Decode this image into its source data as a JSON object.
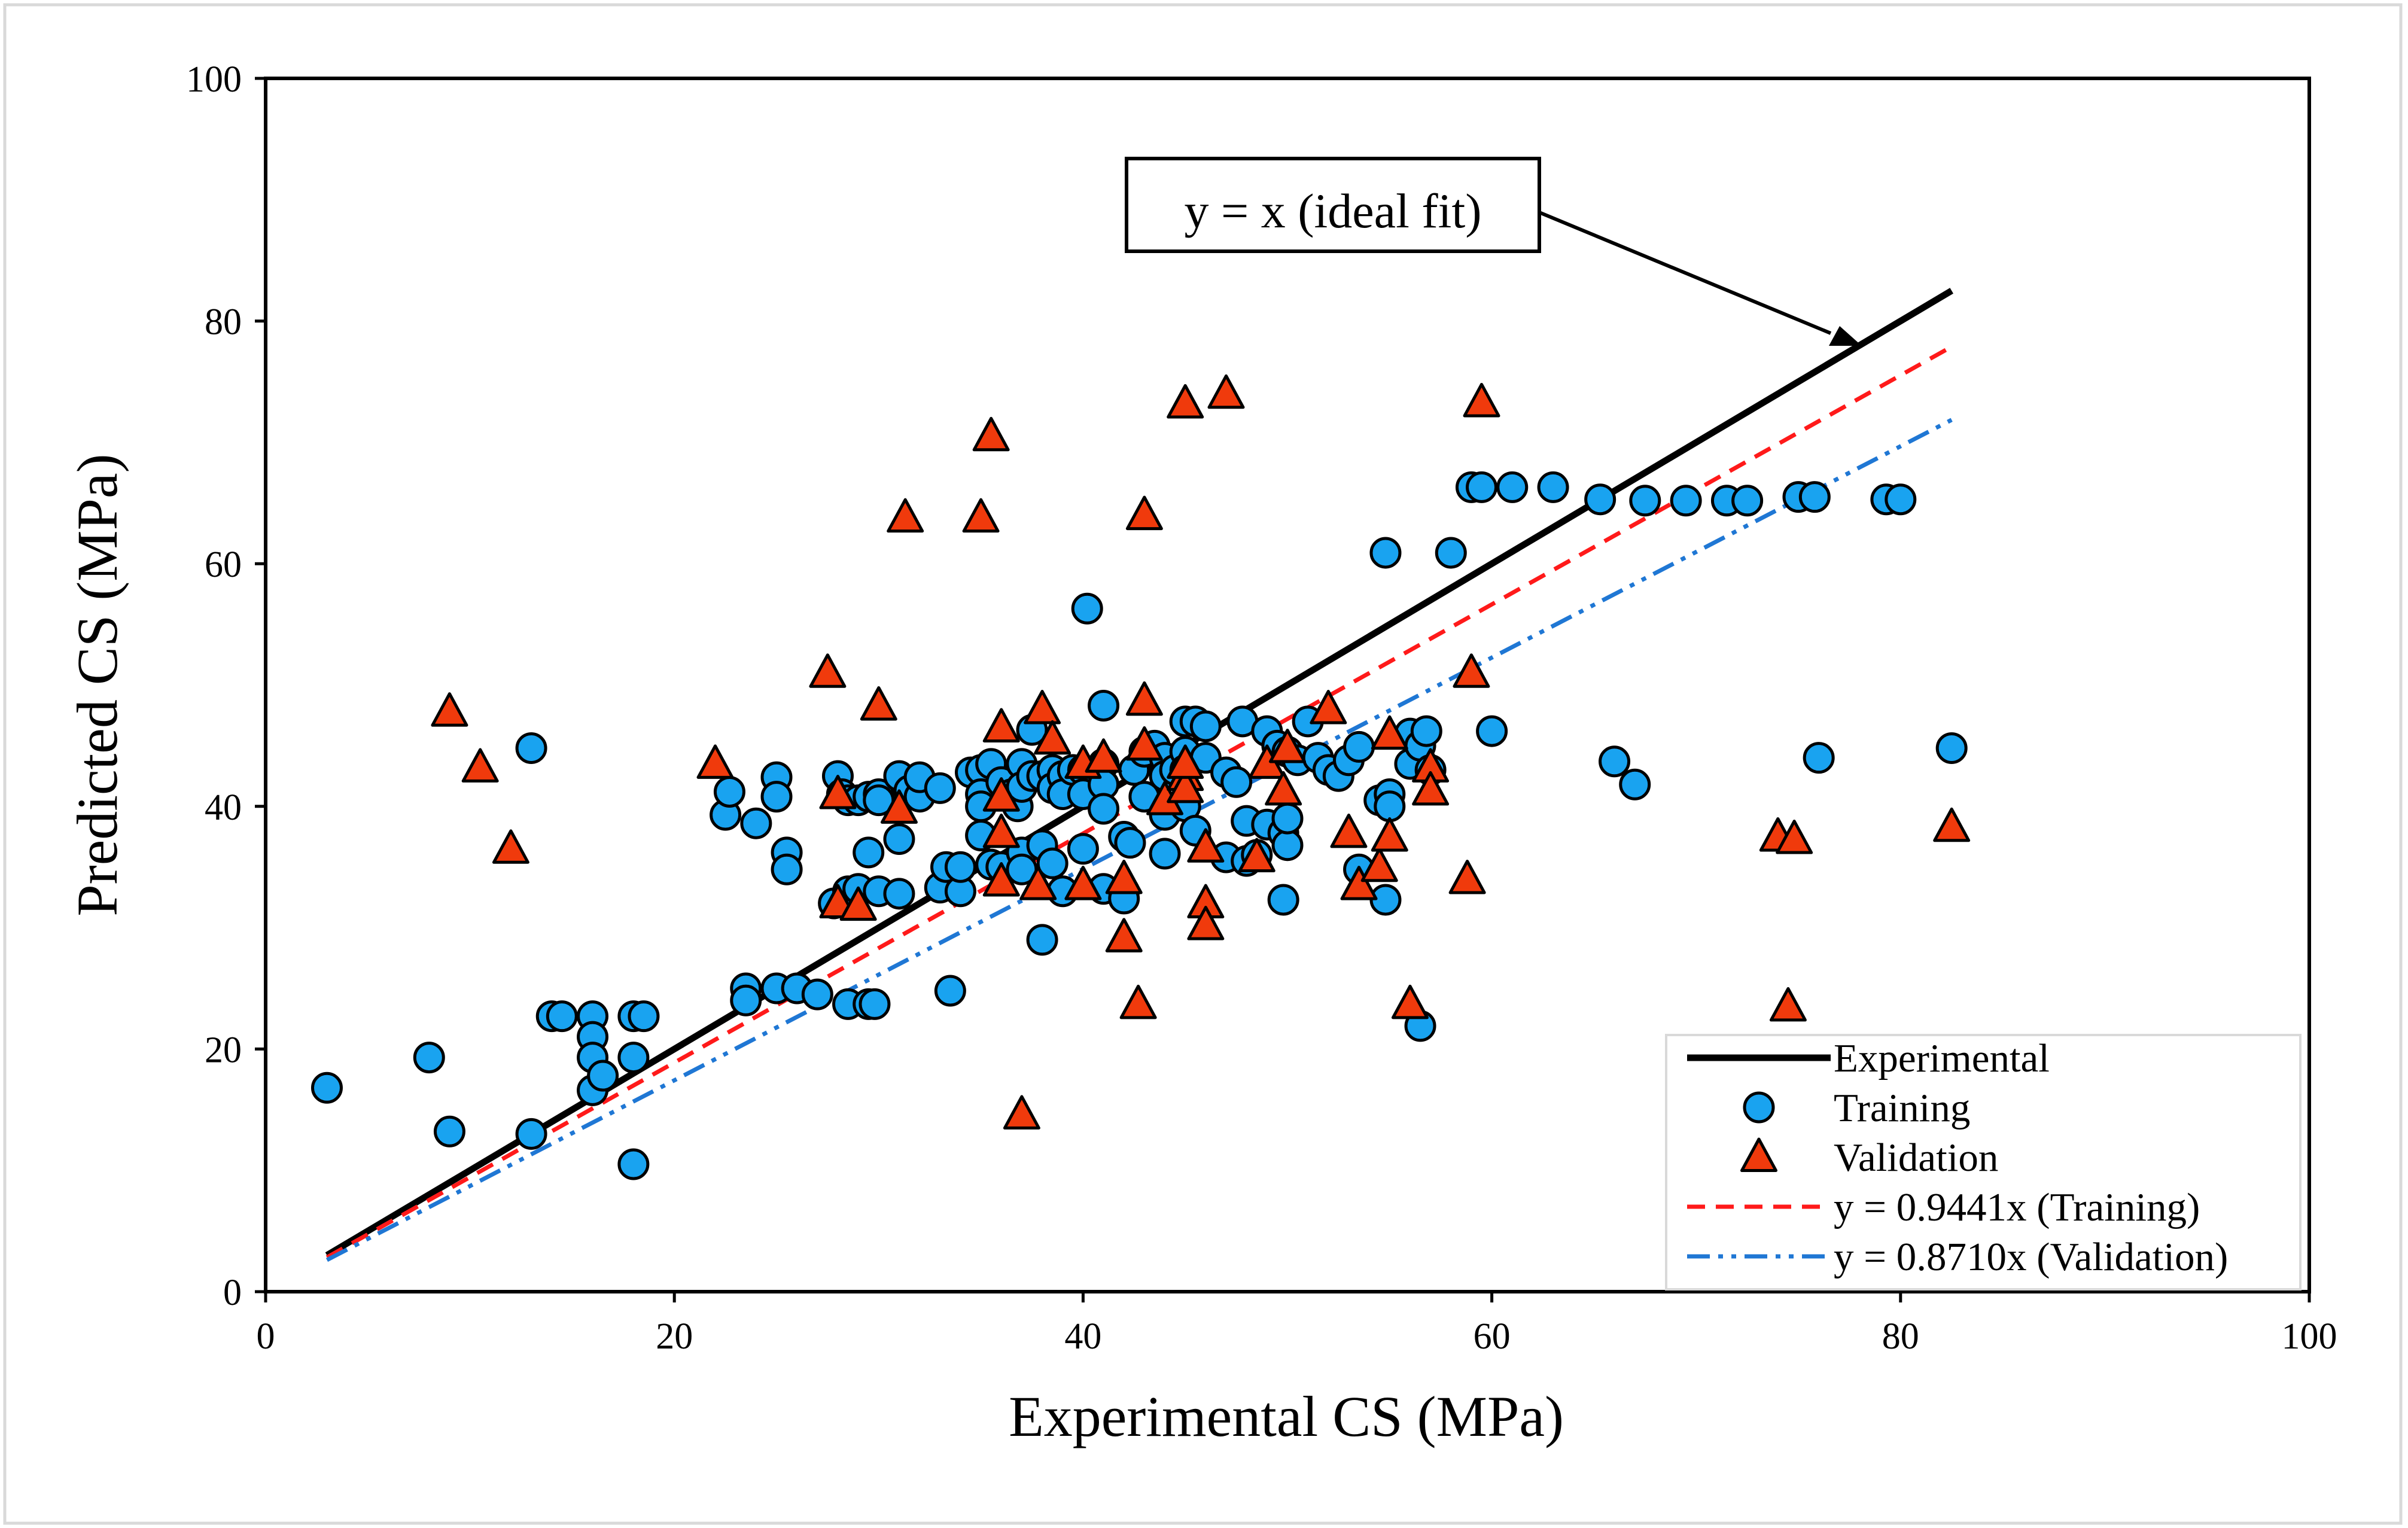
{
  "chart_data": {
    "type": "scatter",
    "xlabel": "Experimental CS (MPa)",
    "ylabel": "Predicted CS (MPa)",
    "xlim": [
      0,
      100
    ],
    "ylim": [
      0,
      100
    ],
    "xticks": [
      "0",
      "20",
      "40",
      "60",
      "80",
      "100"
    ],
    "yticks": [
      "0",
      "20",
      "40",
      "60",
      "80",
      "100"
    ],
    "grid": false,
    "legend_position": "bottom-right",
    "annotation": "y = x (ideal fit)",
    "lines": [
      {
        "name": "Experimental",
        "slope": 1.0,
        "x": [
          3,
          82.5
        ],
        "color": "#000000",
        "style": "solid"
      },
      {
        "name": "y = 0.9441x (Training)",
        "slope": 0.9441,
        "x": [
          3,
          82.5
        ],
        "color": "#ff1a1a",
        "style": "dashed"
      },
      {
        "name": "y = 0.8710x (Validation)",
        "slope": 0.871,
        "x": [
          3,
          82.5
        ],
        "color": "#1f77d4",
        "style": "dash-dot-dot"
      }
    ],
    "series": [
      {
        "name": "Training",
        "marker": "circle",
        "color": "#19a3f0",
        "points": [
          [
            3,
            16.8
          ],
          [
            8,
            19.3
          ],
          [
            9,
            13.2
          ],
          [
            13,
            13
          ],
          [
            13,
            44.8
          ],
          [
            14,
            22.7
          ],
          [
            14.5,
            22.7
          ],
          [
            16,
            22.7
          ],
          [
            16,
            21
          ],
          [
            16,
            19.3
          ],
          [
            16,
            16.6
          ],
          [
            16.5,
            17.8
          ],
          [
            18,
            19.3
          ],
          [
            18,
            22.7
          ],
          [
            18.5,
            22.7
          ],
          [
            18,
            10.5
          ],
          [
            22.5,
            39.3
          ],
          [
            22.7,
            41.2
          ],
          [
            24,
            38.6
          ],
          [
            25,
            42.4
          ],
          [
            25,
            40.8
          ],
          [
            25.5,
            36.2
          ],
          [
            25.5,
            34.8
          ],
          [
            23.5,
            25
          ],
          [
            23.5,
            24
          ],
          [
            25,
            25
          ],
          [
            26,
            25
          ],
          [
            27,
            24.5
          ],
          [
            28.5,
            23.7
          ],
          [
            29.5,
            23.7
          ],
          [
            29.8,
            23.7
          ],
          [
            27.8,
            32
          ],
          [
            28,
            42.5
          ],
          [
            28.2,
            41
          ],
          [
            28.5,
            40.5
          ],
          [
            29,
            40.5
          ],
          [
            29.5,
            40.8
          ],
          [
            30,
            41
          ],
          [
            30,
            40.5
          ],
          [
            31,
            42.5
          ],
          [
            31.5,
            41.3
          ],
          [
            32,
            40.8
          ],
          [
            32,
            42.4
          ],
          [
            33,
            41.5
          ],
          [
            28.5,
            33
          ],
          [
            29,
            33.2
          ],
          [
            29.5,
            36.2
          ],
          [
            30,
            33
          ],
          [
            31,
            37.3
          ],
          [
            31,
            32.8
          ],
          [
            33,
            33.3
          ],
          [
            33.3,
            35
          ],
          [
            34,
            33
          ],
          [
            34,
            35
          ],
          [
            33.5,
            24.8
          ],
          [
            34.5,
            42.8
          ],
          [
            35,
            43
          ],
          [
            35,
            41
          ],
          [
            35,
            40
          ],
          [
            35.5,
            43.5
          ],
          [
            36,
            42
          ],
          [
            35,
            37.6
          ],
          [
            35.5,
            35.2
          ],
          [
            36,
            35
          ],
          [
            36.5,
            41
          ],
          [
            36.8,
            40
          ],
          [
            37,
            43.5
          ],
          [
            37,
            41.6
          ],
          [
            37.5,
            46.3
          ],
          [
            37.5,
            42.5
          ],
          [
            37,
            36.2
          ],
          [
            37,
            34.8
          ],
          [
            38,
            42.5
          ],
          [
            38,
            36.8
          ],
          [
            38.5,
            43
          ],
          [
            38.5,
            41.5
          ],
          [
            38.5,
            35.3
          ],
          [
            39,
            42.5
          ],
          [
            39,
            41
          ],
          [
            39,
            33
          ],
          [
            39.5,
            43
          ],
          [
            40,
            43
          ],
          [
            40,
            41
          ],
          [
            40,
            36.5
          ],
          [
            40.2,
            56.3
          ],
          [
            41,
            48.3
          ],
          [
            41,
            43.5
          ],
          [
            41,
            41.8
          ],
          [
            41,
            39.8
          ],
          [
            41,
            33.2
          ],
          [
            38,
            29
          ],
          [
            42,
            37.5
          ],
          [
            42,
            33
          ],
          [
            42,
            32.4
          ],
          [
            42.3,
            37
          ],
          [
            42.5,
            43
          ],
          [
            43,
            44.5
          ],
          [
            43,
            40.8
          ],
          [
            43.5,
            45
          ],
          [
            44,
            44
          ],
          [
            44,
            42.5
          ],
          [
            44,
            39.3
          ],
          [
            44,
            36.1
          ],
          [
            44.5,
            43
          ],
          [
            45,
            47
          ],
          [
            45,
            44.5
          ],
          [
            45,
            43
          ],
          [
            45,
            40
          ],
          [
            45.5,
            47
          ],
          [
            45.5,
            38
          ],
          [
            46,
            46.6
          ],
          [
            46,
            44
          ],
          [
            47,
            42.8
          ],
          [
            47,
            35.8
          ],
          [
            47.5,
            42
          ],
          [
            47.8,
            47
          ],
          [
            48,
            38.8
          ],
          [
            48,
            35.5
          ],
          [
            48.5,
            36
          ],
          [
            49,
            46.2
          ],
          [
            49,
            38.5
          ],
          [
            49.5,
            45
          ],
          [
            49.8,
            37.8
          ],
          [
            50,
            44.5
          ],
          [
            50,
            36.8
          ],
          [
            50,
            39
          ],
          [
            49.8,
            32.3
          ],
          [
            50.5,
            43.8
          ],
          [
            51,
            47
          ],
          [
            51.5,
            44
          ],
          [
            52,
            43
          ],
          [
            52.5,
            42.5
          ],
          [
            53,
            43.8
          ],
          [
            53.5,
            44.9
          ],
          [
            53.5,
            34.8
          ],
          [
            54.5,
            40.5
          ],
          [
            54.8,
            32.3
          ],
          [
            55,
            41
          ],
          [
            55,
            40
          ],
          [
            54.8,
            60.9
          ],
          [
            56,
            46
          ],
          [
            56,
            43.5
          ],
          [
            56.5,
            45
          ],
          [
            56.8,
            46.2
          ],
          [
            57,
            43
          ],
          [
            58,
            60.9
          ],
          [
            60,
            46.2
          ],
          [
            56.5,
            21.9
          ],
          [
            59,
            66.3
          ],
          [
            59.5,
            66.3
          ],
          [
            61,
            66.3
          ],
          [
            63,
            66.3
          ],
          [
            65.3,
            65.3
          ],
          [
            67.5,
            65.2
          ],
          [
            69.5,
            65.2
          ],
          [
            71.5,
            65.2
          ],
          [
            72.5,
            65.2
          ],
          [
            75,
            65.5
          ],
          [
            75.8,
            65.5
          ],
          [
            79.3,
            65.3
          ],
          [
            80,
            65.3
          ],
          [
            66,
            43.7
          ],
          [
            67,
            41.8
          ],
          [
            76,
            44
          ],
          [
            82.5,
            44.8
          ]
        ]
      },
      {
        "name": "Validation",
        "marker": "triangle",
        "color": "#f03a0c",
        "points": [
          [
            9,
            47.8
          ],
          [
            10.5,
            43.2
          ],
          [
            12,
            36.5
          ],
          [
            22,
            43.5
          ],
          [
            27.5,
            51
          ],
          [
            28,
            41
          ],
          [
            28,
            32
          ],
          [
            29,
            31.8
          ],
          [
            30,
            48.3
          ],
          [
            31,
            39.8
          ],
          [
            31.3,
            63.8
          ],
          [
            35,
            63.8
          ],
          [
            35.5,
            70.5
          ],
          [
            36,
            46.5
          ],
          [
            36,
            40.8
          ],
          [
            36,
            37.8
          ],
          [
            36,
            33.8
          ],
          [
            37,
            14.6
          ],
          [
            37.8,
            33.5
          ],
          [
            38,
            48
          ],
          [
            38.5,
            45.5
          ],
          [
            40,
            43.5
          ],
          [
            40,
            33.5
          ],
          [
            41,
            44
          ],
          [
            42,
            34
          ],
          [
            42,
            29.2
          ],
          [
            42.7,
            23.7
          ],
          [
            43,
            64
          ],
          [
            43,
            48.7
          ],
          [
            43,
            45
          ],
          [
            44,
            40.5
          ],
          [
            45,
            73.2
          ],
          [
            45,
            42.5
          ],
          [
            45,
            41.5
          ],
          [
            45,
            43.5
          ],
          [
            46,
            36.6
          ],
          [
            46,
            32
          ],
          [
            46,
            30.2
          ],
          [
            47,
            74
          ],
          [
            48.5,
            35.8
          ],
          [
            49,
            43.5
          ],
          [
            49.8,
            41.3
          ],
          [
            50,
            44.8
          ],
          [
            52,
            48
          ],
          [
            53,
            37.8
          ],
          [
            53.5,
            33.5
          ],
          [
            54.5,
            35
          ],
          [
            55,
            37.5
          ],
          [
            55,
            45.9
          ],
          [
            56,
            23.7
          ],
          [
            57,
            43.2
          ],
          [
            57,
            41.3
          ],
          [
            59,
            51
          ],
          [
            58.8,
            34
          ],
          [
            59.5,
            73.3
          ],
          [
            74,
            37.5
          ],
          [
            74.5,
            23.5
          ],
          [
            74.8,
            37.3
          ],
          [
            82.5,
            38.3
          ]
        ]
      }
    ],
    "legend": [
      {
        "label": "Experimental",
        "kind": "line",
        "color": "#000000",
        "style": "solid"
      },
      {
        "label": "Training",
        "kind": "circle",
        "color": "#19a3f0"
      },
      {
        "label": "Validation",
        "kind": "triangle",
        "color": "#f03a0c"
      },
      {
        "label": "y = 0.9441x (Training)",
        "kind": "line",
        "color": "#ff1a1a",
        "style": "dashed"
      },
      {
        "label": "y = 0.8710x (Validation)",
        "kind": "line",
        "color": "#1f77d4",
        "style": "dash-dot-dot"
      }
    ]
  }
}
